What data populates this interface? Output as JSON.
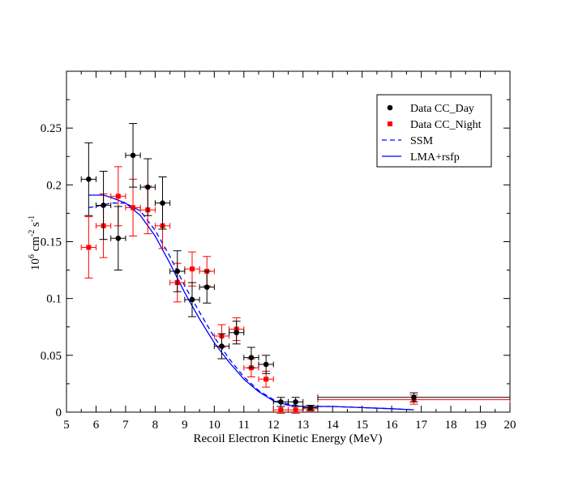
{
  "chart_data": {
    "type": "scatter",
    "title": "",
    "xlabel": "Recoil Electron Kinetic Energy (MeV)",
    "ylabel": {
      "base": "10",
      "exp1": "6",
      "mid": " cm",
      "exp2": "-2",
      "mid2": " s",
      "exp3": "-1"
    },
    "xlim": [
      5,
      20
    ],
    "ylim": [
      0,
      0.3
    ],
    "xticks": [
      5,
      6,
      7,
      8,
      9,
      10,
      11,
      12,
      13,
      14,
      15,
      16,
      17,
      18,
      19,
      20
    ],
    "yticks": [
      0,
      0.05,
      0.1,
      0.15,
      0.2,
      0.25
    ],
    "ytick_labels": [
      "0",
      "0.05",
      "0.1",
      "0.15",
      "0.2",
      "0.25"
    ],
    "grid": false,
    "legend_position": "top-right",
    "series": [
      {
        "name": "Data CC_Day",
        "kind": "points",
        "marker": "circle",
        "color": "#000000",
        "points": [
          {
            "x": 5.75,
            "y": 0.205,
            "xerr": 0.25,
            "yerr": 0.032
          },
          {
            "x": 6.25,
            "y": 0.182,
            "xerr": 0.25,
            "yerr": 0.03
          },
          {
            "x": 6.75,
            "y": 0.153,
            "xerr": 0.25,
            "yerr": 0.028
          },
          {
            "x": 7.25,
            "y": 0.226,
            "xerr": 0.25,
            "yerr": 0.028
          },
          {
            "x": 7.75,
            "y": 0.198,
            "xerr": 0.25,
            "yerr": 0.025
          },
          {
            "x": 8.25,
            "y": 0.184,
            "xerr": 0.25,
            "yerr": 0.023
          },
          {
            "x": 8.75,
            "y": 0.124,
            "xerr": 0.25,
            "yerr": 0.018
          },
          {
            "x": 9.25,
            "y": 0.099,
            "xerr": 0.25,
            "yerr": 0.015
          },
          {
            "x": 9.75,
            "y": 0.11,
            "xerr": 0.25,
            "yerr": 0.014
          },
          {
            "x": 10.25,
            "y": 0.058,
            "xerr": 0.25,
            "yerr": 0.011
          },
          {
            "x": 10.75,
            "y": 0.07,
            "xerr": 0.25,
            "yerr": 0.01
          },
          {
            "x": 11.25,
            "y": 0.048,
            "xerr": 0.25,
            "yerr": 0.009
          },
          {
            "x": 11.75,
            "y": 0.042,
            "xerr": 0.25,
            "yerr": 0.008
          },
          {
            "x": 12.25,
            "y": 0.009,
            "xerr": 0.25,
            "yerr": 0.004
          },
          {
            "x": 12.75,
            "y": 0.009,
            "xerr": 0.25,
            "yerr": 0.004
          },
          {
            "x": 13.25,
            "y": 0.004,
            "xerr": 0.25,
            "yerr": 0.002
          },
          {
            "x": 16.75,
            "y": 0.013,
            "xerr": 3.25,
            "yerr": 0.004
          }
        ]
      },
      {
        "name": "Data CC_Night",
        "kind": "points",
        "marker": "square",
        "color": "#ff0000",
        "points": [
          {
            "x": 5.75,
            "y": 0.145,
            "xerr": 0.25,
            "yerr": 0.027
          },
          {
            "x": 6.25,
            "y": 0.164,
            "xerr": 0.25,
            "yerr": 0.028
          },
          {
            "x": 6.75,
            "y": 0.19,
            "xerr": 0.25,
            "yerr": 0.026
          },
          {
            "x": 7.25,
            "y": 0.18,
            "xerr": 0.25,
            "yerr": 0.025
          },
          {
            "x": 7.75,
            "y": 0.178,
            "xerr": 0.25,
            "yerr": 0.021
          },
          {
            "x": 8.25,
            "y": 0.164,
            "xerr": 0.25,
            "yerr": 0.02
          },
          {
            "x": 8.75,
            "y": 0.114,
            "xerr": 0.25,
            "yerr": 0.017
          },
          {
            "x": 9.25,
            "y": 0.126,
            "xerr": 0.25,
            "yerr": 0.015
          },
          {
            "x": 9.75,
            "y": 0.124,
            "xerr": 0.25,
            "yerr": 0.013
          },
          {
            "x": 10.25,
            "y": 0.067,
            "xerr": 0.25,
            "yerr": 0.01
          },
          {
            "x": 10.75,
            "y": 0.073,
            "xerr": 0.25,
            "yerr": 0.01
          },
          {
            "x": 11.25,
            "y": 0.039,
            "xerr": 0.25,
            "yerr": 0.008
          },
          {
            "x": 11.75,
            "y": 0.029,
            "xerr": 0.25,
            "yerr": 0.007
          },
          {
            "x": 12.25,
            "y": 0.002,
            "xerr": 0.25,
            "yerr": 0.003
          },
          {
            "x": 12.75,
            "y": 0.002,
            "xerr": 0.25,
            "yerr": 0.003
          },
          {
            "x": 13.25,
            "y": 0.003,
            "xerr": 0.25,
            "yerr": 0.002
          },
          {
            "x": 16.75,
            "y": 0.011,
            "xerr": 3.25,
            "yerr": 0.004
          }
        ]
      },
      {
        "name": "SSM",
        "kind": "line",
        "dash": "dashed",
        "color": "#0000ff",
        "x": [
          5.75,
          6.0,
          6.5,
          7.0,
          7.5,
          8.0,
          8.5,
          9.0,
          9.5,
          10.0,
          10.5,
          11.0,
          11.5,
          12.0,
          12.5,
          13.0,
          14.0,
          15.0,
          16.0,
          16.75
        ],
        "y": [
          0.18,
          0.181,
          0.184,
          0.184,
          0.177,
          0.16,
          0.137,
          0.111,
          0.088,
          0.066,
          0.047,
          0.031,
          0.019,
          0.011,
          0.007,
          0.005,
          0.005,
          0.004,
          0.003,
          0.002
        ]
      },
      {
        "name": "LMA+rsfp",
        "kind": "line",
        "dash": "solid",
        "color": "#0000ff",
        "x": [
          5.75,
          6.0,
          6.25,
          6.5,
          7.0,
          7.5,
          8.0,
          8.5,
          9.0,
          9.5,
          10.0,
          10.5,
          11.0,
          11.5,
          12.0,
          12.5,
          13.0,
          14.0,
          15.0,
          16.0,
          16.75
        ],
        "y": [
          0.191,
          0.191,
          0.191,
          0.189,
          0.184,
          0.173,
          0.155,
          0.131,
          0.105,
          0.082,
          0.061,
          0.044,
          0.029,
          0.018,
          0.01,
          0.006,
          0.005,
          0.005,
          0.004,
          0.003,
          0.002
        ]
      }
    ]
  }
}
